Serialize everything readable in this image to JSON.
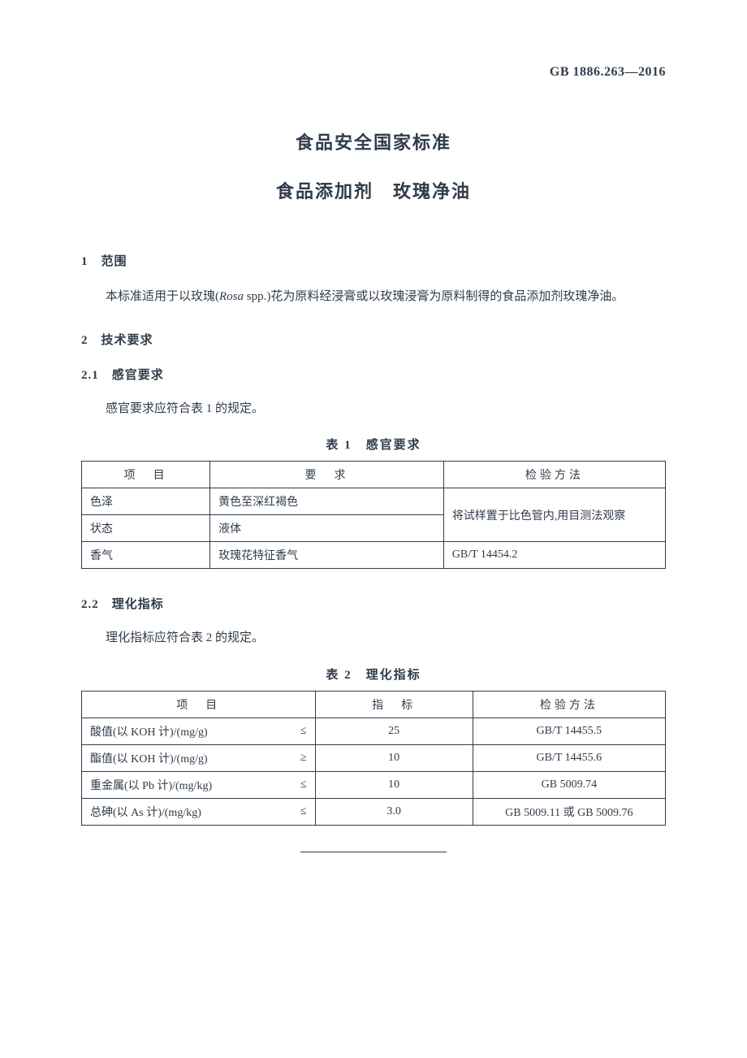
{
  "header": {
    "standard_code": "GB 1886.263—2016"
  },
  "titles": {
    "main": "食品安全国家标准",
    "sub": "食品添加剂　玫瑰净油"
  },
  "sections": {
    "scope": {
      "heading": "1　范围",
      "text_before_italic": "本标准适用于以玫瑰(",
      "italic": "Rosa",
      "text_after_italic": " spp.)花为原料经浸膏或以玫瑰浸膏为原料制得的食品添加剂玫瑰净油。"
    },
    "tech": {
      "heading": "2　技术要求"
    },
    "sensory": {
      "heading": "2.1　感官要求",
      "intro": "感官要求应符合表 1 的规定。",
      "caption": "表 1　感官要求"
    },
    "physchem": {
      "heading": "2.2　理化指标",
      "intro": "理化指标应符合表 2 的规定。",
      "caption": "表 2　理化指标"
    }
  },
  "table1": {
    "headers": {
      "c1": "项　目",
      "c2": "要　求",
      "c3": "检验方法"
    },
    "rows": {
      "r1": {
        "c1": "色泽",
        "c2": "黄色至深红褐色"
      },
      "r2": {
        "c1": "状态",
        "c2": "液体"
      },
      "merged_method_12": "将试样置于比色管内,用目测法观察",
      "r3": {
        "c1": "香气",
        "c2": "玫瑰花特征香气",
        "c3": "GB/T 14454.2"
      }
    }
  },
  "table2": {
    "headers": {
      "c1": "项　目",
      "c2": "指　标",
      "c3": "检验方法"
    },
    "rows": {
      "r1": {
        "label": "酸值(以 KOH 计)/(mg/g)",
        "op": "≤",
        "val": "25",
        "method": "GB/T 14455.5"
      },
      "r2": {
        "label": "酯值(以 KOH 计)/(mg/g)",
        "op": "≥",
        "val": "10",
        "method": "GB/T 14455.6"
      },
      "r3": {
        "label": "重金属(以 Pb 计)/(mg/kg)",
        "op": "≤",
        "val": "10",
        "method": "GB 5009.74"
      },
      "r4": {
        "label": "总砷(以 As 计)/(mg/kg)",
        "op": "≤",
        "val": "3.0",
        "method": "GB 5009.11 或 GB 5009.76"
      }
    }
  }
}
